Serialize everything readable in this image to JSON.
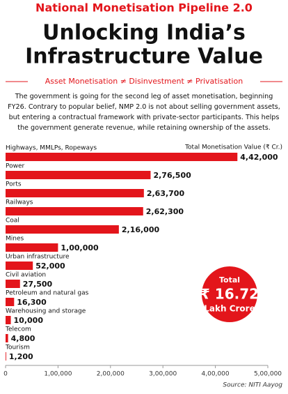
{
  "chart_data": {
    "type": "bar",
    "orientation": "horizontal",
    "header": "National Monetisation Pipeline 2.0",
    "title": [
      "Unlocking India’s",
      "Infrastructure Value"
    ],
    "subtitle": "Asset Monetisation ≠ Disinvestment ≠ Privatisation",
    "paragraph": [
      "The government is going for the second leg of asset monetisation, beginning",
      "FY26. Contrary to popular belief, NMP 2.0 is not about selling government assets,",
      "but entering a contractual framework with private-sector participants. This helps",
      "the government generate revenue, while retaining ownership of the assets."
    ],
    "axis_title": "Total Monetisation Value (₹ Cr.)",
    "categories": [
      "Highways, MMLPs, Ropeways",
      "Power",
      "Ports",
      "Railways",
      "Coal",
      "Mines",
      "Urban infrastructure",
      "Civil aviation",
      "Petroleum and natural gas",
      "Warehousing and storage",
      "Telecom",
      "Tourism"
    ],
    "values": [
      442000,
      276500,
      263700,
      262300,
      216000,
      100000,
      52000,
      27500,
      16300,
      10000,
      4800,
      1200
    ],
    "value_labels": [
      "4,42,000",
      "2,76,500",
      "2,63,700",
      "2,62,300",
      "2,16,000",
      "1,00,000",
      "52,000",
      "27,500",
      "16,300",
      "10,000",
      "4,800",
      "1,200"
    ],
    "color": "#e3151b",
    "xlim": [
      0,
      500000
    ],
    "xticks": [
      0,
      {
        "value": 100000,
        "label": "1,00,000"
      },
      {
        "value": 200000,
        "label": "2,00,000"
      },
      {
        "value": 300000,
        "label": "3,00,000"
      },
      {
        "value": 400000,
        "label": "4,00,000"
      },
      {
        "value": 500000,
        "label": "5,00,000"
      }
    ],
    "total": {
      "label": "Total",
      "value": "₹ 16.72",
      "unit": "Lakh Crore"
    },
    "source": "Source: NITI Aayog"
  }
}
